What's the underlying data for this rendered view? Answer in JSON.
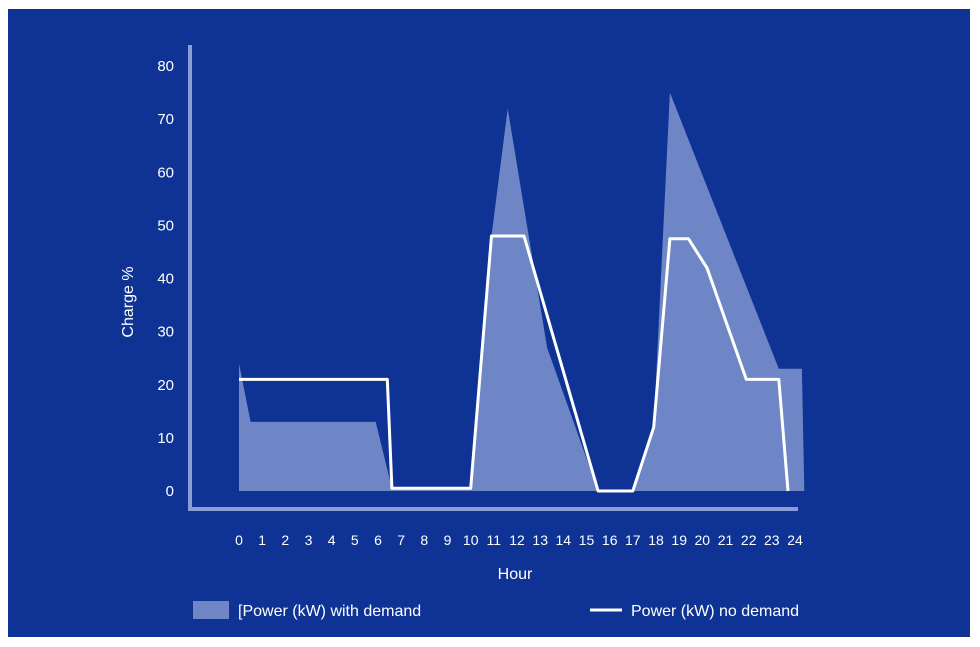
{
  "colors": {
    "background": "#0e3394",
    "area_fill": "#6f86c6",
    "line": "#ffffff",
    "axis": "#8a9dd6",
    "text": "#ffffff"
  },
  "chart_data": {
    "type": "area",
    "xlabel": "Hour",
    "ylabel": "Charge %",
    "xlim": [
      0,
      24
    ],
    "ylim": [
      0,
      80
    ],
    "x_ticks": [
      0,
      1,
      2,
      3,
      4,
      5,
      6,
      7,
      8,
      9,
      10,
      11,
      12,
      13,
      14,
      15,
      16,
      17,
      18,
      19,
      20,
      21,
      22,
      23,
      24
    ],
    "x_tick_labels": [
      "0",
      "1",
      "2",
      "3",
      "4",
      "5",
      "6",
      "7",
      "8",
      "9",
      "10",
      "11",
      "12",
      "13",
      "14",
      "15",
      "16",
      "17",
      "18",
      "19",
      "20",
      "21",
      "22",
      "23",
      "24"
    ],
    "y_ticks": [
      0,
      10,
      20,
      30,
      40,
      50,
      60,
      70,
      80
    ],
    "y_tick_labels": [
      "0",
      "10",
      "20",
      "30",
      "40",
      "50",
      "60",
      "70",
      "80"
    ],
    "grid": false,
    "legend": "bottom",
    "series": [
      {
        "name": "[Power (kW) with demand",
        "kind": "area",
        "points": [
          [
            0,
            0
          ],
          [
            0,
            24
          ],
          [
            0.5,
            13
          ],
          [
            4.8,
            13
          ],
          [
            5.9,
            13
          ],
          [
            6.6,
            0.5
          ],
          [
            10,
            0.5
          ],
          [
            10.9,
            48
          ],
          [
            11.6,
            72
          ],
          [
            13.3,
            27
          ],
          [
            15.5,
            0
          ],
          [
            17,
            0
          ],
          [
            17.9,
            12
          ],
          [
            18.6,
            75
          ],
          [
            23.3,
            23
          ],
          [
            24.3,
            23
          ],
          [
            24.4,
            0
          ]
        ]
      },
      {
        "name": "Power (kW) no demand",
        "kind": "line",
        "points": [
          [
            0,
            21
          ],
          [
            6.4,
            21
          ],
          [
            6.6,
            0.5
          ],
          [
            10,
            0.5
          ],
          [
            10.9,
            48
          ],
          [
            12.3,
            48
          ],
          [
            15.5,
            0
          ],
          [
            17,
            0
          ],
          [
            17.9,
            12
          ],
          [
            18.6,
            47.5
          ],
          [
            19.4,
            47.5
          ],
          [
            20.2,
            42
          ],
          [
            21.9,
            21
          ],
          [
            23.3,
            21
          ],
          [
            23.7,
            0
          ]
        ]
      }
    ]
  }
}
